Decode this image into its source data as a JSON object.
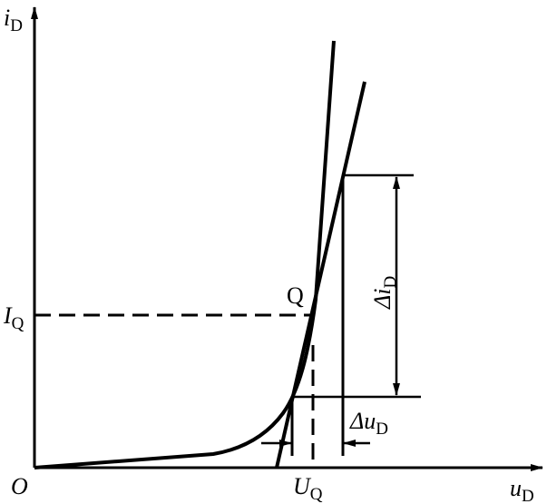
{
  "labels": {
    "y_axis": {
      "main": "i",
      "sub": "D"
    },
    "x_axis": {
      "main": "u",
      "sub": "D"
    },
    "origin": {
      "main": "O"
    },
    "current_q": {
      "main": "I",
      "sub": "Q"
    },
    "voltage_q": {
      "main": "U",
      "sub": "Q"
    },
    "point_q": {
      "main": "Q"
    },
    "delta_i": {
      "main": "Δi",
      "sub": "D"
    },
    "delta_u": {
      "main": "Δu",
      "sub": "D"
    }
  }
}
